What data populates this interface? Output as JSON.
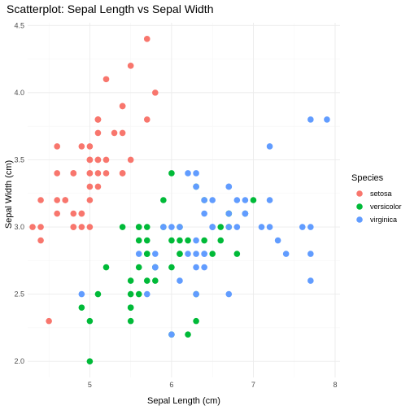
{
  "chart_data": {
    "type": "scatter",
    "title": "Scatterplot: Sepal Length vs Sepal Width",
    "xlabel": "Sepal Length (cm)",
    "ylabel": "Sepal Width (cm)",
    "xlim": [
      4.24,
      8.06
    ],
    "ylim": [
      1.88,
      4.52
    ],
    "xticks": [
      5,
      6,
      7,
      8
    ],
    "xtick_labels": [
      "5",
      "6",
      "7",
      "8"
    ],
    "yticks": [
      2.0,
      2.5,
      3.0,
      3.5,
      4.0,
      4.5
    ],
    "ytick_labels": [
      "2.0",
      "2.5",
      "3.0",
      "3.5",
      "4.0",
      "4.5"
    ],
    "grid": true,
    "legend": {
      "title": "Species",
      "position": "right"
    },
    "series": [
      {
        "name": "setosa",
        "color": "#F8766D",
        "points": [
          [
            5.1,
            3.5
          ],
          [
            4.9,
            3.0
          ],
          [
            4.7,
            3.2
          ],
          [
            4.6,
            3.1
          ],
          [
            5.0,
            3.6
          ],
          [
            5.4,
            3.9
          ],
          [
            4.6,
            3.4
          ],
          [
            5.0,
            3.4
          ],
          [
            4.4,
            2.9
          ],
          [
            4.9,
            3.1
          ],
          [
            5.4,
            3.7
          ],
          [
            4.8,
            3.4
          ],
          [
            4.8,
            3.0
          ],
          [
            4.3,
            3.0
          ],
          [
            5.8,
            4.0
          ],
          [
            5.7,
            4.4
          ],
          [
            5.4,
            3.9
          ],
          [
            5.1,
            3.5
          ],
          [
            5.7,
            3.8
          ],
          [
            5.1,
            3.8
          ],
          [
            5.4,
            3.4
          ],
          [
            5.1,
            3.7
          ],
          [
            4.6,
            3.6
          ],
          [
            5.1,
            3.3
          ],
          [
            4.8,
            3.4
          ],
          [
            5.0,
            3.0
          ],
          [
            5.0,
            3.4
          ],
          [
            5.2,
            3.5
          ],
          [
            5.2,
            3.4
          ],
          [
            4.7,
            3.2
          ],
          [
            4.8,
            3.1
          ],
          [
            5.4,
            3.4
          ],
          [
            5.2,
            4.1
          ],
          [
            5.5,
            4.2
          ],
          [
            4.9,
            3.1
          ],
          [
            5.0,
            3.2
          ],
          [
            5.5,
            3.5
          ],
          [
            4.9,
            3.6
          ],
          [
            4.4,
            3.0
          ],
          [
            5.1,
            3.4
          ],
          [
            5.0,
            3.5
          ],
          [
            4.5,
            2.3
          ],
          [
            4.4,
            3.2
          ],
          [
            5.0,
            3.5
          ],
          [
            5.1,
            3.8
          ],
          [
            4.8,
            3.0
          ],
          [
            5.1,
            3.8
          ],
          [
            4.6,
            3.2
          ],
          [
            5.3,
            3.7
          ],
          [
            5.0,
            3.3
          ]
        ]
      },
      {
        "name": "versicolor",
        "color": "#00BA38",
        "points": [
          [
            7.0,
            3.2
          ],
          [
            6.4,
            3.2
          ],
          [
            6.9,
            3.1
          ],
          [
            5.5,
            2.3
          ],
          [
            6.5,
            2.8
          ],
          [
            5.7,
            2.8
          ],
          [
            6.3,
            3.3
          ],
          [
            4.9,
            2.4
          ],
          [
            6.6,
            2.9
          ],
          [
            5.2,
            2.7
          ],
          [
            5.0,
            2.0
          ],
          [
            5.9,
            3.0
          ],
          [
            6.0,
            2.2
          ],
          [
            6.1,
            2.9
          ],
          [
            5.6,
            2.9
          ],
          [
            6.7,
            3.1
          ],
          [
            5.6,
            3.0
          ],
          [
            5.8,
            2.7
          ],
          [
            6.2,
            2.2
          ],
          [
            5.6,
            2.5
          ],
          [
            5.9,
            3.2
          ],
          [
            6.1,
            2.8
          ],
          [
            6.3,
            2.5
          ],
          [
            6.1,
            2.8
          ],
          [
            6.4,
            2.9
          ],
          [
            6.6,
            3.0
          ],
          [
            6.8,
            2.8
          ],
          [
            6.7,
            3.0
          ],
          [
            6.0,
            2.9
          ],
          [
            5.7,
            2.6
          ],
          [
            5.5,
            2.4
          ],
          [
            5.5,
            2.4
          ],
          [
            5.8,
            2.7
          ],
          [
            6.0,
            2.7
          ],
          [
            5.4,
            3.0
          ],
          [
            6.0,
            3.4
          ],
          [
            6.7,
            3.1
          ],
          [
            6.3,
            2.3
          ],
          [
            5.6,
            3.0
          ],
          [
            5.5,
            2.5
          ],
          [
            5.5,
            2.6
          ],
          [
            6.1,
            3.0
          ],
          [
            5.8,
            2.6
          ],
          [
            5.0,
            2.3
          ],
          [
            5.6,
            2.7
          ],
          [
            5.7,
            3.0
          ],
          [
            5.7,
            2.9
          ],
          [
            6.2,
            2.9
          ],
          [
            5.1,
            2.5
          ],
          [
            5.7,
            2.8
          ]
        ]
      },
      {
        "name": "virginica",
        "color": "#619CFF",
        "points": [
          [
            6.3,
            3.3
          ],
          [
            5.8,
            2.7
          ],
          [
            7.1,
            3.0
          ],
          [
            6.3,
            2.9
          ],
          [
            6.5,
            3.0
          ],
          [
            7.6,
            3.0
          ],
          [
            4.9,
            2.5
          ],
          [
            7.3,
            2.9
          ],
          [
            6.7,
            2.5
          ],
          [
            7.2,
            3.6
          ],
          [
            6.5,
            3.2
          ],
          [
            6.4,
            2.7
          ],
          [
            6.8,
            3.0
          ],
          [
            5.7,
            2.5
          ],
          [
            5.8,
            2.8
          ],
          [
            6.4,
            3.2
          ],
          [
            6.5,
            3.0
          ],
          [
            7.7,
            3.8
          ],
          [
            7.7,
            2.6
          ],
          [
            6.0,
            2.2
          ],
          [
            6.9,
            3.2
          ],
          [
            5.6,
            2.8
          ],
          [
            7.7,
            2.8
          ],
          [
            6.3,
            2.7
          ],
          [
            6.7,
            3.3
          ],
          [
            7.2,
            3.2
          ],
          [
            6.2,
            2.8
          ],
          [
            6.1,
            3.0
          ],
          [
            6.4,
            2.8
          ],
          [
            7.2,
            3.0
          ],
          [
            7.4,
            2.8
          ],
          [
            7.9,
            3.8
          ],
          [
            6.4,
            2.8
          ],
          [
            6.3,
            2.8
          ],
          [
            6.1,
            2.6
          ],
          [
            7.7,
            3.0
          ],
          [
            6.3,
            3.4
          ],
          [
            6.4,
            3.1
          ],
          [
            6.0,
            3.0
          ],
          [
            6.9,
            3.1
          ],
          [
            6.7,
            3.1
          ],
          [
            6.9,
            3.1
          ],
          [
            5.8,
            2.7
          ],
          [
            6.8,
            3.2
          ],
          [
            6.7,
            3.3
          ],
          [
            6.7,
            3.0
          ],
          [
            6.3,
            2.5
          ],
          [
            6.5,
            3.0
          ],
          [
            6.2,
            3.4
          ],
          [
            5.9,
            3.0
          ]
        ]
      }
    ]
  }
}
